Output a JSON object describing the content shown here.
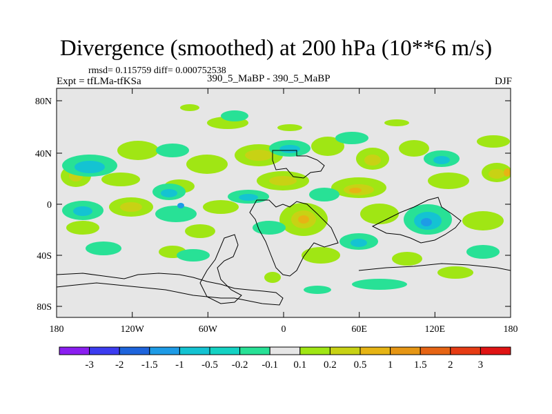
{
  "title": "Divergence (smoothed) at 200 hPa (10**6 m/s)",
  "stats": "rmsd= 0.115759 diff= 0.000752538",
  "experiment": "Expt = tfLMa-tfKSa",
  "case": "390_5_MaBP - 390_5_MaBP",
  "season": "DJF",
  "lat_labels": [
    "80N",
    "40N",
    "0",
    "40S",
    "80S"
  ],
  "lon_labels": [
    "180",
    "120W",
    "60W",
    "0",
    "60E",
    "120E",
    "180"
  ],
  "colorbar": {
    "colors": [
      "#8a1ef0",
      "#3c3cf0",
      "#1e64dc",
      "#1e9be6",
      "#14c3d2",
      "#14d2c3",
      "#28e196",
      "#e6e6e6",
      "#a0e614",
      "#c8d214",
      "#e6b414",
      "#e69614",
      "#e66414",
      "#e63c14",
      "#e01414"
    ],
    "labels": [
      "-3",
      "-2",
      "-1.5",
      "-1",
      "-0.5",
      "-0.2",
      "-0.1",
      "0.1",
      "0.2",
      "0.5",
      "1",
      "1.5",
      "2",
      "3"
    ]
  }
}
